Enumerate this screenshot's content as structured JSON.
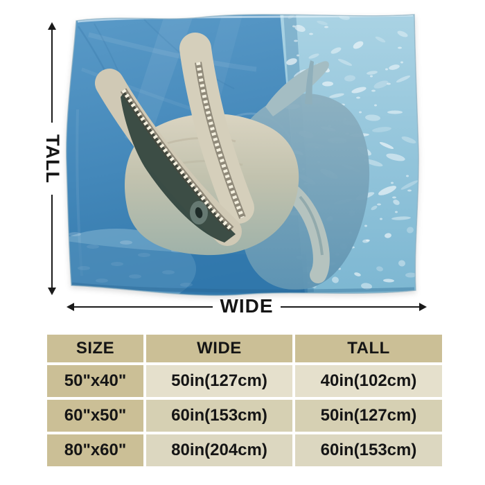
{
  "product_photo": {
    "alt_text": "Dolphin with open mouth photographed underwater in a blue pool, printed on a flannel blanket with wavy fabric edges"
  },
  "dimension_arrows": {
    "tall_label": "TALL",
    "wide_label": "WIDE"
  },
  "size_table": {
    "headers": [
      "SIZE",
      "WIDE",
      "TALL"
    ],
    "rows": [
      [
        "50\"x40\"",
        "50in(127cm)",
        "40in(102cm)"
      ],
      [
        "60\"x50\"",
        "60in(153cm)",
        "50in(127cm)"
      ],
      [
        "80\"x60\"",
        "80in(204cm)",
        "60in(153cm)"
      ]
    ]
  },
  "colors": {
    "arrow": "#1a1a1a",
    "table_tan": "#cbbf96",
    "table_beige_1": "#e5e0cc",
    "table_beige_2": "#d6d0b3",
    "table_beige_3": "#dcd7c0",
    "water_blue": "#4a8cbd",
    "water_light": "#8fc2da",
    "dolphin_body": "#cfc9b6"
  }
}
